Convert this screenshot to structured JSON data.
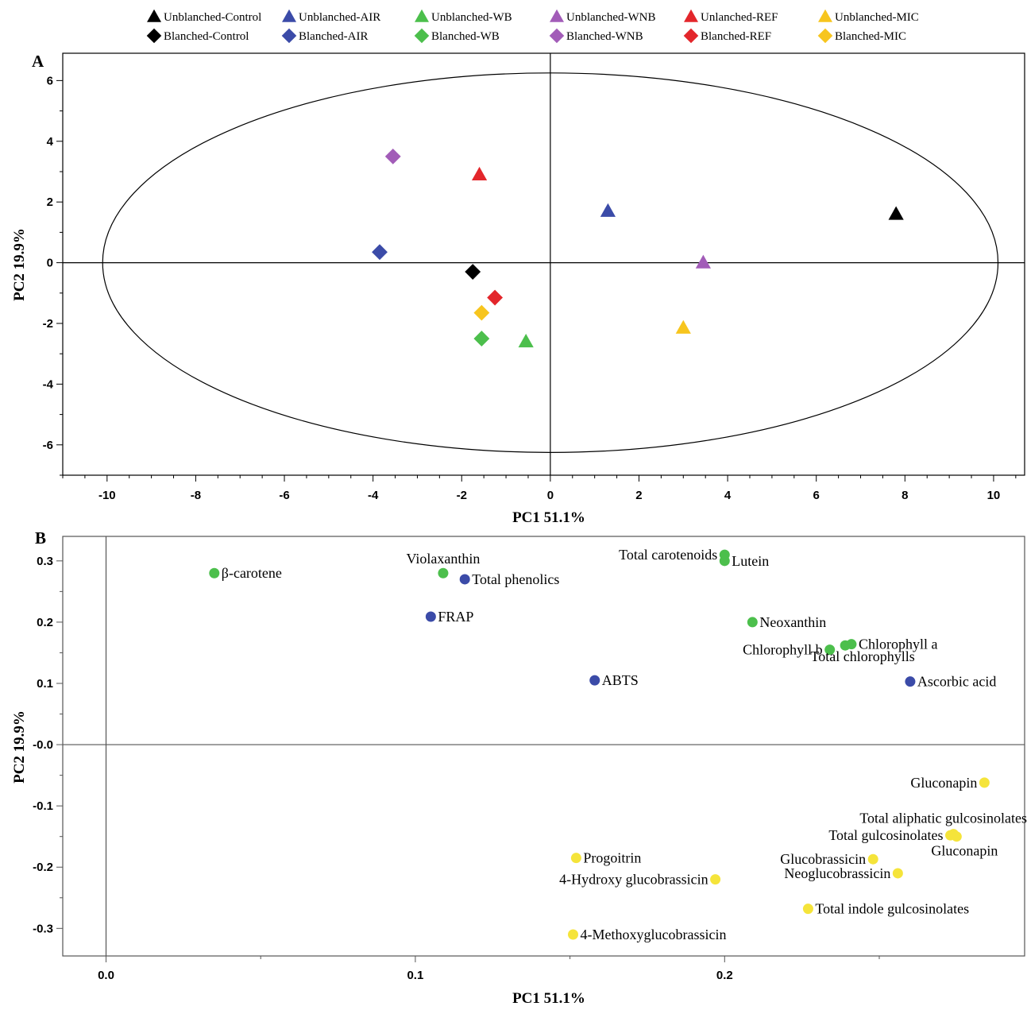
{
  "legend": [
    {
      "label": "Unblanched-Control",
      "shape": "triangle",
      "color": "#000000"
    },
    {
      "label": "Unblanched-AIR",
      "shape": "triangle",
      "color": "#3b4ba8"
    },
    {
      "label": "Unblanched-WB",
      "shape": "triangle",
      "color": "#4cbf4c"
    },
    {
      "label": "Unblanched-WNB",
      "shape": "triangle",
      "color": "#a25cb8"
    },
    {
      "label": "Unlanched-REF",
      "shape": "triangle",
      "color": "#e3262b"
    },
    {
      "label": "Unblanched-MIC",
      "shape": "triangle",
      "color": "#f7c51e"
    },
    {
      "label": "Blanched-Control",
      "shape": "diamond",
      "color": "#000000"
    },
    {
      "label": "Blanched-AIR",
      "shape": "diamond",
      "color": "#3b4ba8"
    },
    {
      "label": "Blanched-WB",
      "shape": "diamond",
      "color": "#4cbf4c"
    },
    {
      "label": "Blanched-WNB",
      "shape": "diamond",
      "color": "#a25cb8"
    },
    {
      "label": "Blanched-REF",
      "shape": "diamond",
      "color": "#e3262b"
    },
    {
      "label": "Blanched-MIC",
      "shape": "diamond",
      "color": "#f7c51e"
    }
  ],
  "chart_data": [
    {
      "panel": "A",
      "type": "scatter",
      "xlabel": "PC1  51.1%",
      "ylabel": "PC2  19.9%",
      "xlim": [
        -11,
        10.7
      ],
      "ylim": [
        -7,
        6.9
      ],
      "xticks": [
        -10,
        -8,
        -6,
        -4,
        -2,
        0,
        2,
        4,
        6,
        8,
        10
      ],
      "yticks": [
        -6,
        -4,
        -2,
        0,
        2,
        4,
        6
      ],
      "ellipse": {
        "rx": 10.1,
        "ry": 6.25
      },
      "points": [
        {
          "series": "Unblanched-Control",
          "x": 7.8,
          "y": 1.6
        },
        {
          "series": "Unblanched-AIR",
          "x": 1.3,
          "y": 1.7
        },
        {
          "series": "Unblanched-WB",
          "x": -0.55,
          "y": -2.6
        },
        {
          "series": "Unblanched-WNB",
          "x": 3.45,
          "y": 0.0
        },
        {
          "series": "Unlanched-REF",
          "x": -1.6,
          "y": 2.9
        },
        {
          "series": "Unblanched-MIC",
          "x": 3.0,
          "y": -2.15
        },
        {
          "series": "Blanched-Control",
          "x": -1.75,
          "y": -0.3
        },
        {
          "series": "Blanched-AIR",
          "x": -3.85,
          "y": 0.35
        },
        {
          "series": "Blanched-WB",
          "x": -1.55,
          "y": -2.5
        },
        {
          "series": "Blanched-WNB",
          "x": -3.55,
          "y": 3.5
        },
        {
          "series": "Blanched-REF",
          "x": -1.25,
          "y": -1.15
        },
        {
          "series": "Blanched-MIC",
          "x": -1.55,
          "y": -1.65
        }
      ]
    },
    {
      "panel": "B",
      "type": "scatter",
      "xlabel": "PC1  51.1%",
      "ylabel": "PC2  19.9%",
      "xlim": [
        -0.014,
        0.297
      ],
      "ylim": [
        -0.345,
        0.34
      ],
      "xticks": [
        {
          "v": 0.0,
          "label": "0.0"
        },
        {
          "v": 0.1,
          "label": "0.1"
        },
        {
          "v": 0.2,
          "label": "0.2"
        }
      ],
      "yticks": [
        {
          "v": 0.3,
          "label": "0.3"
        },
        {
          "v": 0.2,
          "label": "0.2"
        },
        {
          "v": 0.1,
          "label": "0.1"
        },
        {
          "v": 0.0,
          "label": "-0.0"
        },
        {
          "v": -0.1,
          "label": "-0.1"
        },
        {
          "v": -0.2,
          "label": "-0.2"
        },
        {
          "v": -0.3,
          "label": "-0.3"
        }
      ],
      "group_colors": {
        "green": "#4cbf4c",
        "blue": "#3b4ba8",
        "yellow": "#f5e43a"
      },
      "points": [
        {
          "label": "β-carotene",
          "x": 0.035,
          "y": 0.28,
          "group": "green",
          "anchor": "right"
        },
        {
          "label": "Violaxanthin",
          "x": 0.109,
          "y": 0.28,
          "group": "green",
          "anchor": "above"
        },
        {
          "label": "Total phenolics",
          "x": 0.116,
          "y": 0.27,
          "group": "blue",
          "anchor": "right"
        },
        {
          "label": "FRAP",
          "x": 0.105,
          "y": 0.209,
          "group": "blue",
          "anchor": "right"
        },
        {
          "label": "Total carotenoids",
          "x": 0.2,
          "y": 0.31,
          "group": "green",
          "anchor": "left"
        },
        {
          "label": "Lutein",
          "x": 0.2,
          "y": 0.3,
          "group": "green",
          "anchor": "right"
        },
        {
          "label": "Neoxanthin",
          "x": 0.209,
          "y": 0.2,
          "group": "green",
          "anchor": "right"
        },
        {
          "label": "Chlorophyll a",
          "x": 0.241,
          "y": 0.164,
          "group": "green",
          "anchor": "right"
        },
        {
          "label": "Chlorophyll b",
          "x": 0.234,
          "y": 0.155,
          "group": "green",
          "anchor": "left"
        },
        {
          "label": "Total chlorophylls",
          "x": 0.239,
          "y": 0.162,
          "group": "green",
          "anchor": "below"
        },
        {
          "label": "ABTS",
          "x": 0.158,
          "y": 0.105,
          "group": "blue",
          "anchor": "right"
        },
        {
          "label": "Ascorbic acid",
          "x": 0.26,
          "y": 0.103,
          "group": "blue",
          "anchor": "right"
        },
        {
          "label": "Gluconapin",
          "x": 0.284,
          "y": -0.062,
          "group": "yellow",
          "anchor": "left"
        },
        {
          "label": "Total aliphatic gulcosinolates",
          "x": 0.274,
          "y": -0.146,
          "group": "yellow",
          "anchor": "aboveleft"
        },
        {
          "label": "Total gulcosinolates",
          "x": 0.273,
          "y": -0.148,
          "group": "yellow",
          "anchor": "left"
        },
        {
          "label": "Gluconapin",
          "x": 0.275,
          "y": -0.15,
          "group": "yellow",
          "anchor": "belowleft"
        },
        {
          "label": "Glucobrassicin",
          "x": 0.248,
          "y": -0.187,
          "group": "yellow",
          "anchor": "left"
        },
        {
          "label": "Neoglucobrassicin",
          "x": 0.256,
          "y": -0.21,
          "group": "yellow",
          "anchor": "left"
        },
        {
          "label": "Progoitrin",
          "x": 0.152,
          "y": -0.185,
          "group": "yellow",
          "anchor": "right"
        },
        {
          "label": "4-Hydroxy glucobrassicin",
          "x": 0.197,
          "y": -0.22,
          "group": "yellow",
          "anchor": "left"
        },
        {
          "label": "Total indole gulcosinolates",
          "x": 0.227,
          "y": -0.268,
          "group": "yellow",
          "anchor": "right"
        },
        {
          "label": "4-Methoxyglucobrassicin",
          "x": 0.151,
          "y": -0.31,
          "group": "yellow",
          "anchor": "right"
        }
      ]
    }
  ]
}
